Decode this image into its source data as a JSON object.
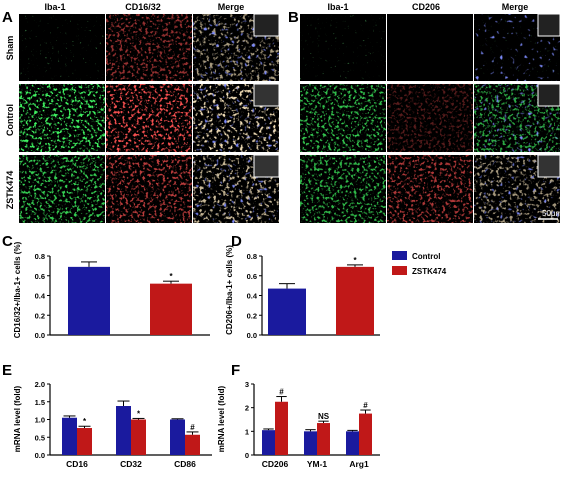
{
  "panels": {
    "A": {
      "letter": "A",
      "columns": [
        "Iba-1",
        "CD16/32",
        "Merge"
      ],
      "rows": [
        "Sham",
        "Control",
        "ZSTK474"
      ]
    },
    "B": {
      "letter": "B",
      "columns": [
        "Iba-1",
        "CD206",
        "Merge"
      ],
      "scale_bar": "50μm"
    }
  },
  "colors": {
    "control": "#1a1a9e",
    "zstk474": "#c01818",
    "iba1": "#2fcf3a",
    "cd": "#d42020",
    "dapi": "#3040d8"
  },
  "legend": [
    {
      "label": "Control",
      "color": "#1a1a9e"
    },
    {
      "label": "ZSTK474",
      "color": "#c01818"
    }
  ],
  "chart_data": [
    {
      "panel": "C",
      "type": "bar",
      "ylabel": "CD16/32+/Iba-1+ cells (%)",
      "ylim": [
        0.0,
        0.8
      ],
      "yticks": [
        "0.0",
        "0.2",
        "0.4",
        "0.6",
        "0.8"
      ],
      "categories": [
        ""
      ],
      "series": [
        {
          "name": "Control",
          "values": [
            0.69
          ],
          "errors": [
            0.05
          ]
        },
        {
          "name": "ZSTK474",
          "values": [
            0.52
          ],
          "errors": [
            0.025
          ]
        }
      ],
      "annotations": [
        {
          "series": 1,
          "index": 0,
          "text": "*"
        }
      ]
    },
    {
      "panel": "D",
      "type": "bar",
      "ylabel": "CD206+/Iba-1+ cells (%)",
      "ylim": [
        0.0,
        0.8
      ],
      "yticks": [
        "0.0",
        "0.2",
        "0.4",
        "0.6",
        "0.8"
      ],
      "categories": [
        ""
      ],
      "series": [
        {
          "name": "Control",
          "values": [
            0.47
          ],
          "errors": [
            0.05
          ]
        },
        {
          "name": "ZSTK474",
          "values": [
            0.69
          ],
          "errors": [
            0.02
          ]
        }
      ],
      "annotations": [
        {
          "series": 1,
          "index": 0,
          "text": "*"
        }
      ]
    },
    {
      "panel": "E",
      "type": "bar",
      "ylabel": "mRNA level (fold)",
      "ylim": [
        0.0,
        2.0
      ],
      "yticks": [
        "0.0",
        "0.5",
        "1.0",
        "1.5",
        "2.0"
      ],
      "categories": [
        "CD16",
        "CD32",
        "CD86"
      ],
      "series": [
        {
          "name": "Control",
          "values": [
            1.05,
            1.38,
            1.0
          ],
          "errors": [
            0.05,
            0.14,
            0.02
          ]
        },
        {
          "name": "ZSTK474",
          "values": [
            0.76,
            1.0,
            0.57
          ],
          "errors": [
            0.05,
            0.03,
            0.08
          ]
        }
      ],
      "annotations": [
        {
          "series": 1,
          "index": 0,
          "text": "*"
        },
        {
          "series": 1,
          "index": 1,
          "text": "*"
        },
        {
          "series": 1,
          "index": 2,
          "text": "#"
        }
      ]
    },
    {
      "panel": "F",
      "type": "bar",
      "ylabel": "mRNA level (fold)",
      "ylim": [
        0,
        3
      ],
      "yticks": [
        "0",
        "1",
        "2",
        "3"
      ],
      "categories": [
        "CD206",
        "YM-1",
        "Arg1"
      ],
      "series": [
        {
          "name": "Control",
          "values": [
            1.05,
            1.0,
            1.0
          ],
          "errors": [
            0.05,
            0.07,
            0.04
          ]
        },
        {
          "name": "ZSTK474",
          "values": [
            2.25,
            1.35,
            1.75
          ],
          "errors": [
            0.22,
            0.08,
            0.15
          ]
        }
      ],
      "annotations": [
        {
          "series": 1,
          "index": 0,
          "text": "#"
        },
        {
          "series": 1,
          "index": 1,
          "text": "NS"
        },
        {
          "series": 1,
          "index": 2,
          "text": "#"
        }
      ]
    }
  ]
}
